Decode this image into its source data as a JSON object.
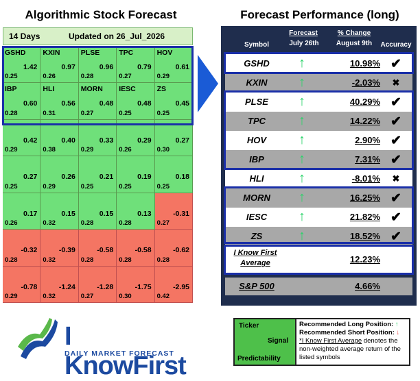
{
  "left_title": "Algorithmic Stock Forecast",
  "right_title": "Forecast Performance (long)",
  "left_header": {
    "days": "14 Days",
    "updated": "Updated on 26_Jul_2026"
  },
  "grid": [
    [
      {
        "t": "GSHD",
        "s": "1.42",
        "p": "0.25"
      },
      {
        "t": "KXIN",
        "s": "0.97",
        "p": "0.26"
      },
      {
        "t": "PLSE",
        "s": "0.96",
        "p": "0.28"
      },
      {
        "t": "TPC",
        "s": "0.79",
        "p": "0.27"
      },
      {
        "t": "HOV",
        "s": "0.61",
        "p": "0.29"
      }
    ],
    [
      {
        "t": "IBP",
        "s": "0.60",
        "p": "0.28"
      },
      {
        "t": "HLI",
        "s": "0.56",
        "p": "0.31"
      },
      {
        "t": "MORN",
        "s": "0.48",
        "p": "0.27"
      },
      {
        "t": "IESC",
        "s": "0.48",
        "p": "0.25"
      },
      {
        "t": "ZS",
        "s": "0.45",
        "p": "0.25"
      }
    ],
    [
      {
        "t": "",
        "s": "0.42",
        "p": "0.29"
      },
      {
        "t": "",
        "s": "0.40",
        "p": "0.38"
      },
      {
        "t": "",
        "s": "0.33",
        "p": "0.29"
      },
      {
        "t": "",
        "s": "0.29",
        "p": "0.26"
      },
      {
        "t": "",
        "s": "0.27",
        "p": "0.30"
      }
    ],
    [
      {
        "t": "",
        "s": "0.27",
        "p": "0.25"
      },
      {
        "t": "",
        "s": "0.26",
        "p": "0.29"
      },
      {
        "t": "",
        "s": "0.21",
        "p": "0.25"
      },
      {
        "t": "",
        "s": "0.19",
        "p": "0.25"
      },
      {
        "t": "",
        "s": "0.18",
        "p": "0.25"
      }
    ],
    [
      {
        "t": "",
        "s": "0.17",
        "p": "0.26"
      },
      {
        "t": "",
        "s": "0.15",
        "p": "0.32"
      },
      {
        "t": "",
        "s": "0.15",
        "p": "0.28"
      },
      {
        "t": "",
        "s": "0.13",
        "p": "0.28"
      },
      {
        "t": "",
        "s": "-0.31",
        "p": "0.27"
      }
    ],
    [
      {
        "t": "",
        "s": "-0.32",
        "p": "0.28"
      },
      {
        "t": "",
        "s": "-0.39",
        "p": "0.32"
      },
      {
        "t": "",
        "s": "-0.58",
        "p": "0.28"
      },
      {
        "t": "",
        "s": "-0.58",
        "p": "0.28"
      },
      {
        "t": "",
        "s": "-0.62",
        "p": "0.28"
      }
    ],
    [
      {
        "t": "",
        "s": "-0.78",
        "p": "0.29"
      },
      {
        "t": "",
        "s": "-1.24",
        "p": "0.32"
      },
      {
        "t": "",
        "s": "-1.28",
        "p": "0.27"
      },
      {
        "t": "",
        "s": "-1.75",
        "p": "0.30"
      },
      {
        "t": "",
        "s": "-2.95",
        "p": "0.42"
      }
    ]
  ],
  "table_header": {
    "symbol": "Symbol",
    "forecast": "Forecast",
    "forecast_date": "July 26th",
    "change": "% Change",
    "change_date": "August 9th",
    "accuracy": "Accuracy"
  },
  "rows": [
    {
      "sym": "GSHD",
      "pct": "10.98%",
      "acc": "✔"
    },
    {
      "sym": "KXIN",
      "pct": "-2.03%",
      "acc": "✖"
    },
    {
      "sym": "PLSE",
      "pct": "40.29%",
      "acc": "✔"
    },
    {
      "sym": "TPC",
      "pct": "14.22%",
      "acc": "✔"
    },
    {
      "sym": "HOV",
      "pct": "2.90%",
      "acc": "✔"
    },
    {
      "sym": "IBP",
      "pct": "7.31%",
      "acc": "✔"
    },
    {
      "sym": "HLI",
      "pct": "-8.01%",
      "acc": "✖"
    },
    {
      "sym": "MORN",
      "pct": "16.25%",
      "acc": "✔"
    },
    {
      "sym": "IESC",
      "pct": "21.82%",
      "acc": "✔"
    },
    {
      "sym": "ZS",
      "pct": "18.52%",
      "acc": "✔"
    }
  ],
  "arrow_glyph": "↑",
  "average": {
    "label_1": "I Know First",
    "label_2": "Average",
    "pct": "12.23%"
  },
  "sp500": {
    "label": "S&P 500",
    "pct": "4.66%"
  },
  "logo": {
    "brand": "I KnowFirst",
    "tagline": "DAILY MARKET FORECAST"
  },
  "legend": {
    "ticker": "Ticker",
    "signal": "Signal",
    "predictability": "Predictability",
    "long": "Recommended Long Position:",
    "short": "Recommended Short Position:",
    "note_1": "*I Know First Average",
    "note_2": " denotes the non-weighted average return of the listed symbols"
  },
  "colors": {
    "positive": "#6fe07a",
    "negative": "#f47563",
    "box": "#1a2fa8",
    "header_bg": "#1f2d4d",
    "arrow_up": "#2bd36a",
    "arrow_down": "#e53935"
  }
}
